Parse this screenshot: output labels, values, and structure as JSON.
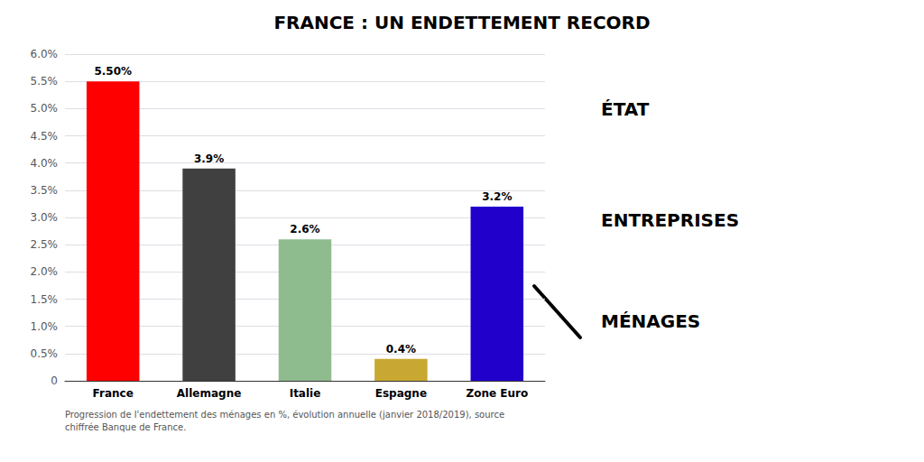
{
  "chart_data": {
    "type": "bar",
    "title": "FRANCE : UN ENDETTEMENT RECORD",
    "categories": [
      "France",
      "Allemagne",
      "Italie",
      "Espagne",
      "Zone Euro"
    ],
    "values": [
      5.5,
      3.9,
      2.6,
      0.4,
      3.2
    ],
    "value_labels": [
      "5.50%",
      "3.9%",
      "2.6%",
      "0.4%",
      "3.2%"
    ],
    "data_labels": true,
    "colors": [
      "#ff0000",
      "#404040",
      "#8fbc8f",
      "#c8a832",
      "#2200cc"
    ],
    "ylim": [
      0,
      6.0
    ],
    "yticks": [
      0,
      {
        "value": 0.5,
        "label": "0.5%"
      },
      {
        "value": 1.0,
        "label": "1.0%"
      },
      {
        "value": 1.5,
        "label": "1.5%"
      },
      {
        "value": 2.0,
        "label": "2.0%"
      },
      {
        "value": 2.5,
        "label": "2.5%"
      },
      {
        "value": 3.0,
        "label": "3.0%"
      },
      {
        "value": 3.5,
        "label": "3.5%"
      },
      {
        "value": 4.0,
        "label": "4.0%"
      },
      {
        "value": 4.5,
        "label": "4.5%"
      },
      {
        "value": 5.0,
        "label": "5.0%"
      },
      {
        "value": 5.5,
        "label": "5.5%"
      },
      {
        "value": 6.0,
        "label": "6.0%"
      }
    ],
    "grid": true,
    "footnote": "Progression de l'endettement des ménages en %, évolution annuelle (janvier 2018/2019), source\nchiffrée Banque de France.",
    "annotations": [
      "ÉTAT",
      "ENTREPRISES",
      "MÉNAGES"
    ]
  }
}
